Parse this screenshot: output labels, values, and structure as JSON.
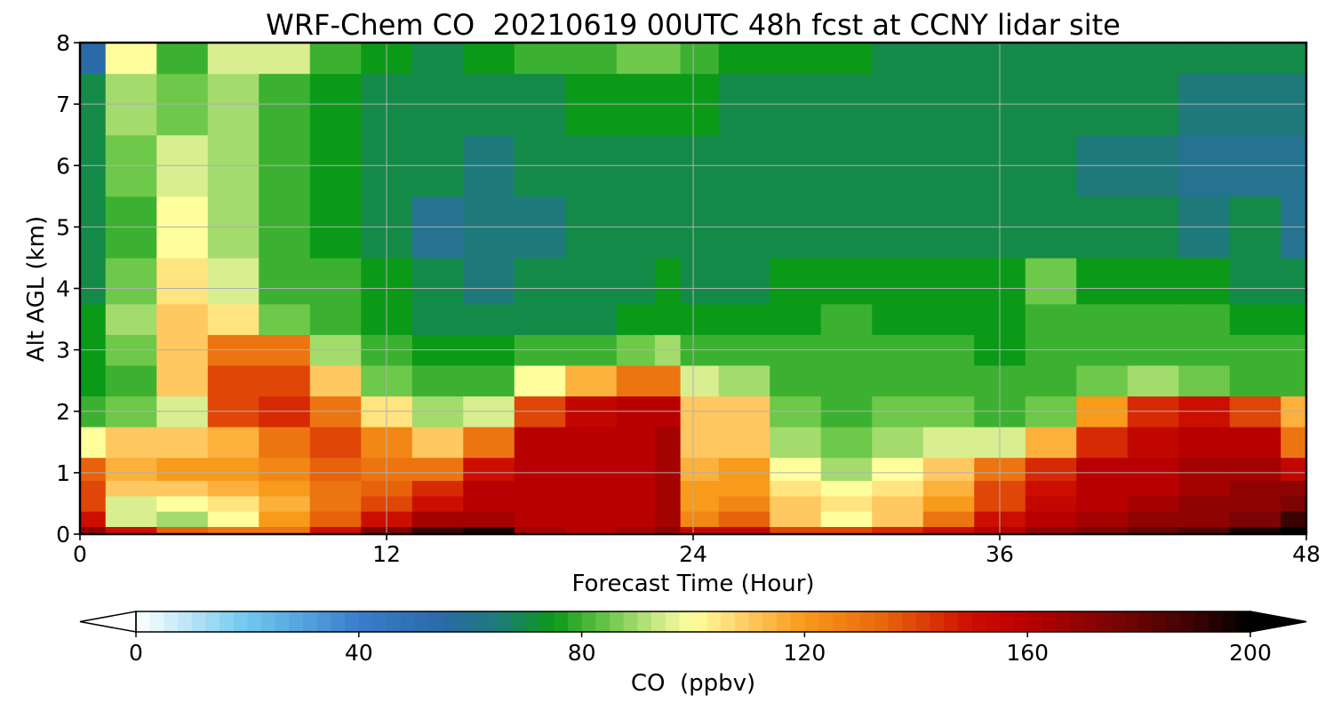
{
  "chart_data": {
    "type": "heatmap",
    "title": "WRF-Chem CO  20210619 00UTC 48h fcst at CCNY lidar site",
    "xlabel": "Forecast Time (Hour)",
    "ylabel": "Alt AGL (km)",
    "xlim": [
      0,
      48
    ],
    "ylim": [
      0,
      8
    ],
    "x_ticks": [
      0,
      12,
      24,
      36,
      48
    ],
    "y_ticks": [
      0,
      1,
      2,
      3,
      4,
      5,
      6,
      7,
      8
    ],
    "grid": true,
    "x": [
      0,
      2,
      4,
      6,
      8,
      10,
      12,
      14,
      16,
      18,
      20,
      22,
      23,
      24,
      26,
      28,
      30,
      32,
      34,
      36,
      38,
      40,
      42,
      44,
      46,
      48
    ],
    "y": [
      0,
      0.25,
      0.5,
      0.75,
      1,
      1.5,
      2,
      2.5,
      3,
      3.5,
      4,
      5,
      6,
      7,
      8
    ],
    "z": [
      [
        170,
        150,
        135,
        128,
        130,
        150,
        175,
        190,
        195,
        165,
        160,
        165,
        170,
        155,
        155,
        140,
        140,
        145,
        150,
        160,
        170,
        175,
        180,
        185,
        195,
        200
      ],
      [
        150,
        95,
        92,
        100,
        118,
        135,
        148,
        165,
        165,
        160,
        160,
        162,
        165,
        125,
        135,
        110,
        102,
        110,
        130,
        150,
        160,
        165,
        168,
        170,
        175,
        190
      ],
      [
        140,
        95,
        98,
        105,
        115,
        128,
        140,
        150,
        158,
        160,
        160,
        162,
        165,
        118,
        125,
        108,
        103,
        110,
        120,
        140,
        155,
        162,
        165,
        168,
        170,
        175
      ],
      [
        138,
        112,
        112,
        115,
        120,
        130,
        135,
        145,
        158,
        160,
        160,
        162,
        165,
        118,
        120,
        105,
        98,
        105,
        115,
        138,
        150,
        160,
        162,
        165,
        168,
        168
      ],
      [
        135,
        115,
        118,
        120,
        125,
        135,
        130,
        130,
        150,
        160,
        160,
        162,
        165,
        115,
        118,
        100,
        90,
        100,
        108,
        130,
        145,
        158,
        160,
        165,
        165,
        155
      ],
      [
        100,
        112,
        112,
        115,
        130,
        140,
        125,
        112,
        130,
        158,
        160,
        162,
        165,
        112,
        112,
        90,
        85,
        90,
        95,
        95,
        115,
        145,
        155,
        160,
        160,
        130
      ],
      [
        80,
        85,
        95,
        138,
        145,
        130,
        105,
        88,
        95,
        140,
        155,
        160,
        160,
        110,
        108,
        85,
        82,
        85,
        85,
        80,
        85,
        120,
        145,
        148,
        140,
        115
      ],
      [
        75,
        80,
        110,
        138,
        140,
        110,
        85,
        78,
        80,
        98,
        115,
        128,
        128,
        95,
        88,
        82,
        82,
        82,
        80,
        78,
        80,
        85,
        88,
        85,
        82,
        82
      ],
      [
        75,
        85,
        112,
        130,
        128,
        90,
        80,
        75,
        75,
        78,
        80,
        85,
        88,
        80,
        80,
        78,
        82,
        78,
        78,
        76,
        78,
        80,
        82,
        80,
        80,
        80
      ],
      [
        75,
        88,
        108,
        105,
        85,
        80,
        76,
        72,
        70,
        72,
        72,
        74,
        76,
        75,
        75,
        76,
        78,
        76,
        76,
        76,
        80,
        78,
        78,
        78,
        76,
        75
      ],
      [
        72,
        85,
        105,
        95,
        80,
        78,
        74,
        68,
        66,
        68,
        70,
        72,
        74,
        72,
        72,
        74,
        76,
        74,
        74,
        75,
        85,
        76,
        76,
        75,
        72,
        70
      ],
      [
        70,
        82,
        100,
        90,
        78,
        76,
        72,
        62,
        64,
        66,
        68,
        70,
        72,
        72,
        72,
        72,
        72,
        72,
        72,
        72,
        72,
        72,
        70,
        66,
        68,
        62
      ],
      [
        70,
        85,
        95,
        90,
        78,
        75,
        70,
        68,
        66,
        68,
        70,
        70,
        72,
        72,
        72,
        72,
        70,
        70,
        70,
        70,
        70,
        64,
        64,
        62,
        62,
        62
      ],
      [
        68,
        90,
        85,
        92,
        82,
        75,
        72,
        70,
        70,
        72,
        74,
        76,
        76,
        74,
        72,
        72,
        72,
        70,
        70,
        70,
        70,
        68,
        68,
        66,
        65,
        65
      ],
      [
        55,
        98,
        80,
        95,
        95,
        78,
        74,
        72,
        76,
        80,
        82,
        85,
        85,
        80,
        76,
        74,
        74,
        72,
        72,
        72,
        72,
        70,
        70,
        70,
        68,
        68
      ]
    ],
    "colorbar": {
      "label": "CO  (ppbv)",
      "min": 0,
      "max": 200,
      "ticks": [
        0,
        40,
        80,
        120,
        160,
        200
      ],
      "extend": "both"
    }
  }
}
